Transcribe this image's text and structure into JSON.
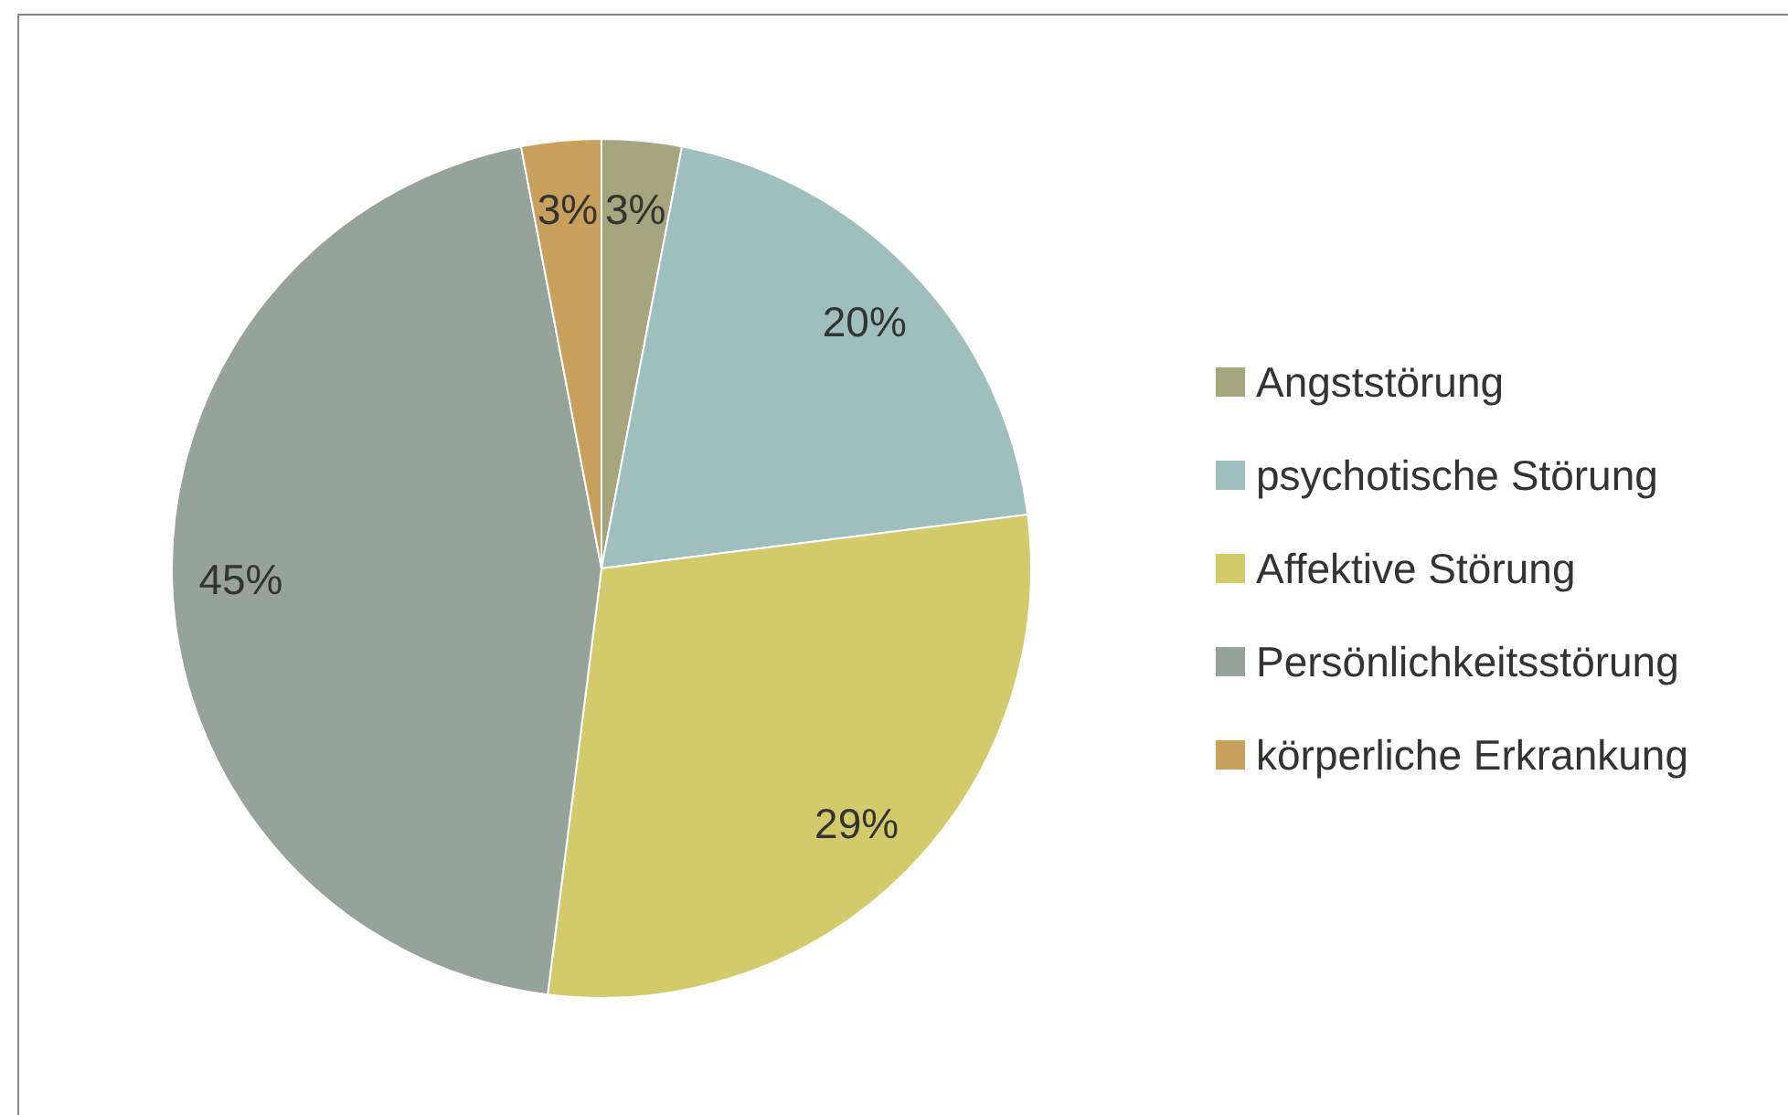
{
  "chart_data": {
    "type": "pie",
    "categories": [
      "Angststörung",
      "psychotische Störung",
      "Affektive Störung",
      "Persönlichkeitsstörung",
      "körperliche Erkrankung"
    ],
    "values": [
      3,
      20,
      29,
      45,
      3
    ],
    "colors": [
      "#a6a57e",
      "#9fbfbf",
      "#d3cb6b",
      "#95a39b",
      "#c9a05b"
    ],
    "value_labels": [
      "3%",
      "20%",
      "29%",
      "45%",
      "3%"
    ],
    "legend": "right"
  }
}
